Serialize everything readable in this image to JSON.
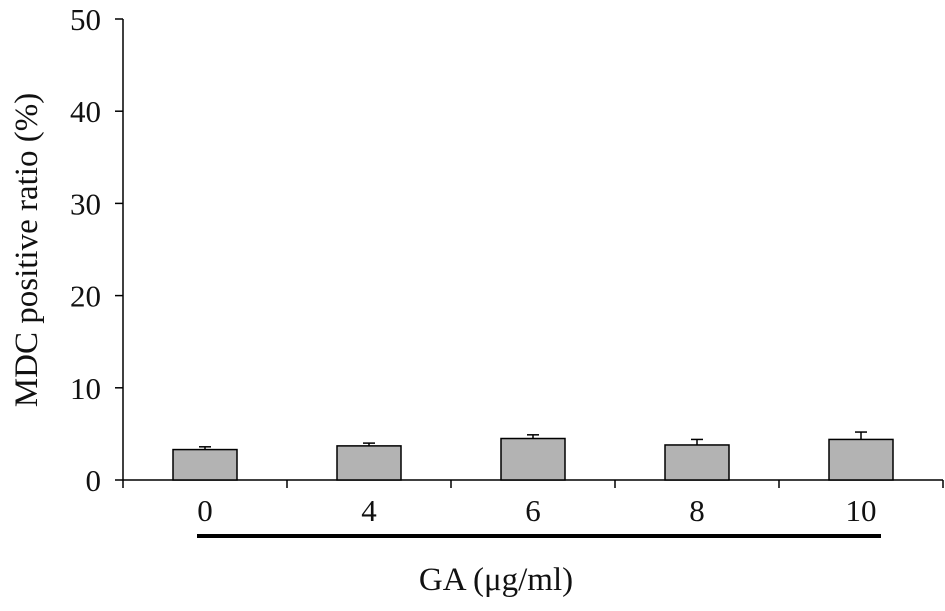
{
  "chart_data": {
    "type": "bar",
    "title": "",
    "xlabel": "GA (μg/ml)",
    "ylabel": "MDC positive ratio (%)",
    "categories": [
      "0",
      "4",
      "6",
      "8",
      "10"
    ],
    "values": [
      3.3,
      3.7,
      4.5,
      3.8,
      4.4
    ],
    "errors": [
      0.3,
      0.3,
      0.4,
      0.6,
      0.8
    ],
    "ylim": [
      0,
      50
    ],
    "yticks": [
      0,
      10,
      20,
      30,
      40,
      50
    ],
    "grid": false,
    "legend": "none",
    "colors": {
      "bar_fill": "#b3b3b3",
      "bar_stroke": "#000000",
      "axis": "#000000",
      "underline": "#000000"
    }
  }
}
